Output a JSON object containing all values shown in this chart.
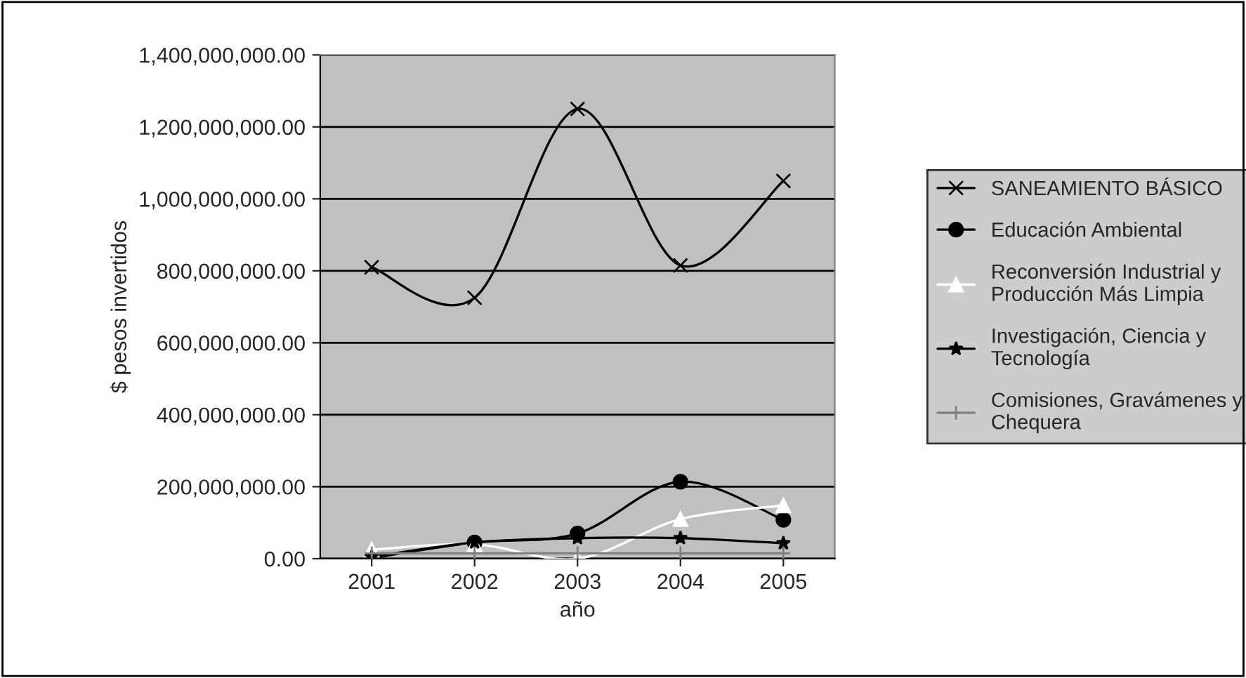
{
  "chart_data": {
    "type": "line",
    "xlabel": "año",
    "ylabel": "$ pesos invertidos",
    "categories": [
      "2001",
      "2002",
      "2003",
      "2004",
      "2005"
    ],
    "series": [
      {
        "name": "SANEAMIENTO BÁSICO",
        "color": "#000000",
        "marker": "cross",
        "values": [
          810000000,
          725000000,
          1250000000,
          815000000,
          1050000000
        ]
      },
      {
        "name": "Educación Ambiental",
        "color": "#000000",
        "marker": "circle",
        "values": [
          2000000,
          45000000,
          70000000,
          214000000,
          108000000
        ]
      },
      {
        "name": "Reconversión Industrial y\nProducción Más Limpia",
        "color": "#ffffff",
        "marker": "triangle",
        "values": [
          25000000,
          40000000,
          0,
          110000000,
          148000000
        ]
      },
      {
        "name": "Investigación, Ciencia y\nTecnología",
        "color": "#000000",
        "marker": "star",
        "values": [
          5000000,
          45000000,
          57000000,
          57000000,
          43000000
        ]
      },
      {
        "name": "Comisiones, Gravámenes y\nChequera",
        "color": "#808080",
        "marker": "plus",
        "values": [
          15000000,
          15000000,
          15000000,
          15000000,
          15000000
        ]
      }
    ],
    "ylim": [
      0,
      1400000000
    ],
    "yticks": [
      {
        "value": 0,
        "label": "0.00"
      },
      {
        "value": 200000000,
        "label": "200,000,000.00"
      },
      {
        "value": 400000000,
        "label": "400,000,000.00"
      },
      {
        "value": 600000000,
        "label": "600,000,000.00"
      },
      {
        "value": 800000000,
        "label": "800,000,000.00"
      },
      {
        "value": 1000000000,
        "label": "1,000,000,000.00"
      },
      {
        "value": 1200000000,
        "label": "1,200,000,000.00"
      },
      {
        "value": 1400000000,
        "label": "1,400,000,000.00"
      }
    ],
    "grid": "y",
    "legend": "right"
  }
}
